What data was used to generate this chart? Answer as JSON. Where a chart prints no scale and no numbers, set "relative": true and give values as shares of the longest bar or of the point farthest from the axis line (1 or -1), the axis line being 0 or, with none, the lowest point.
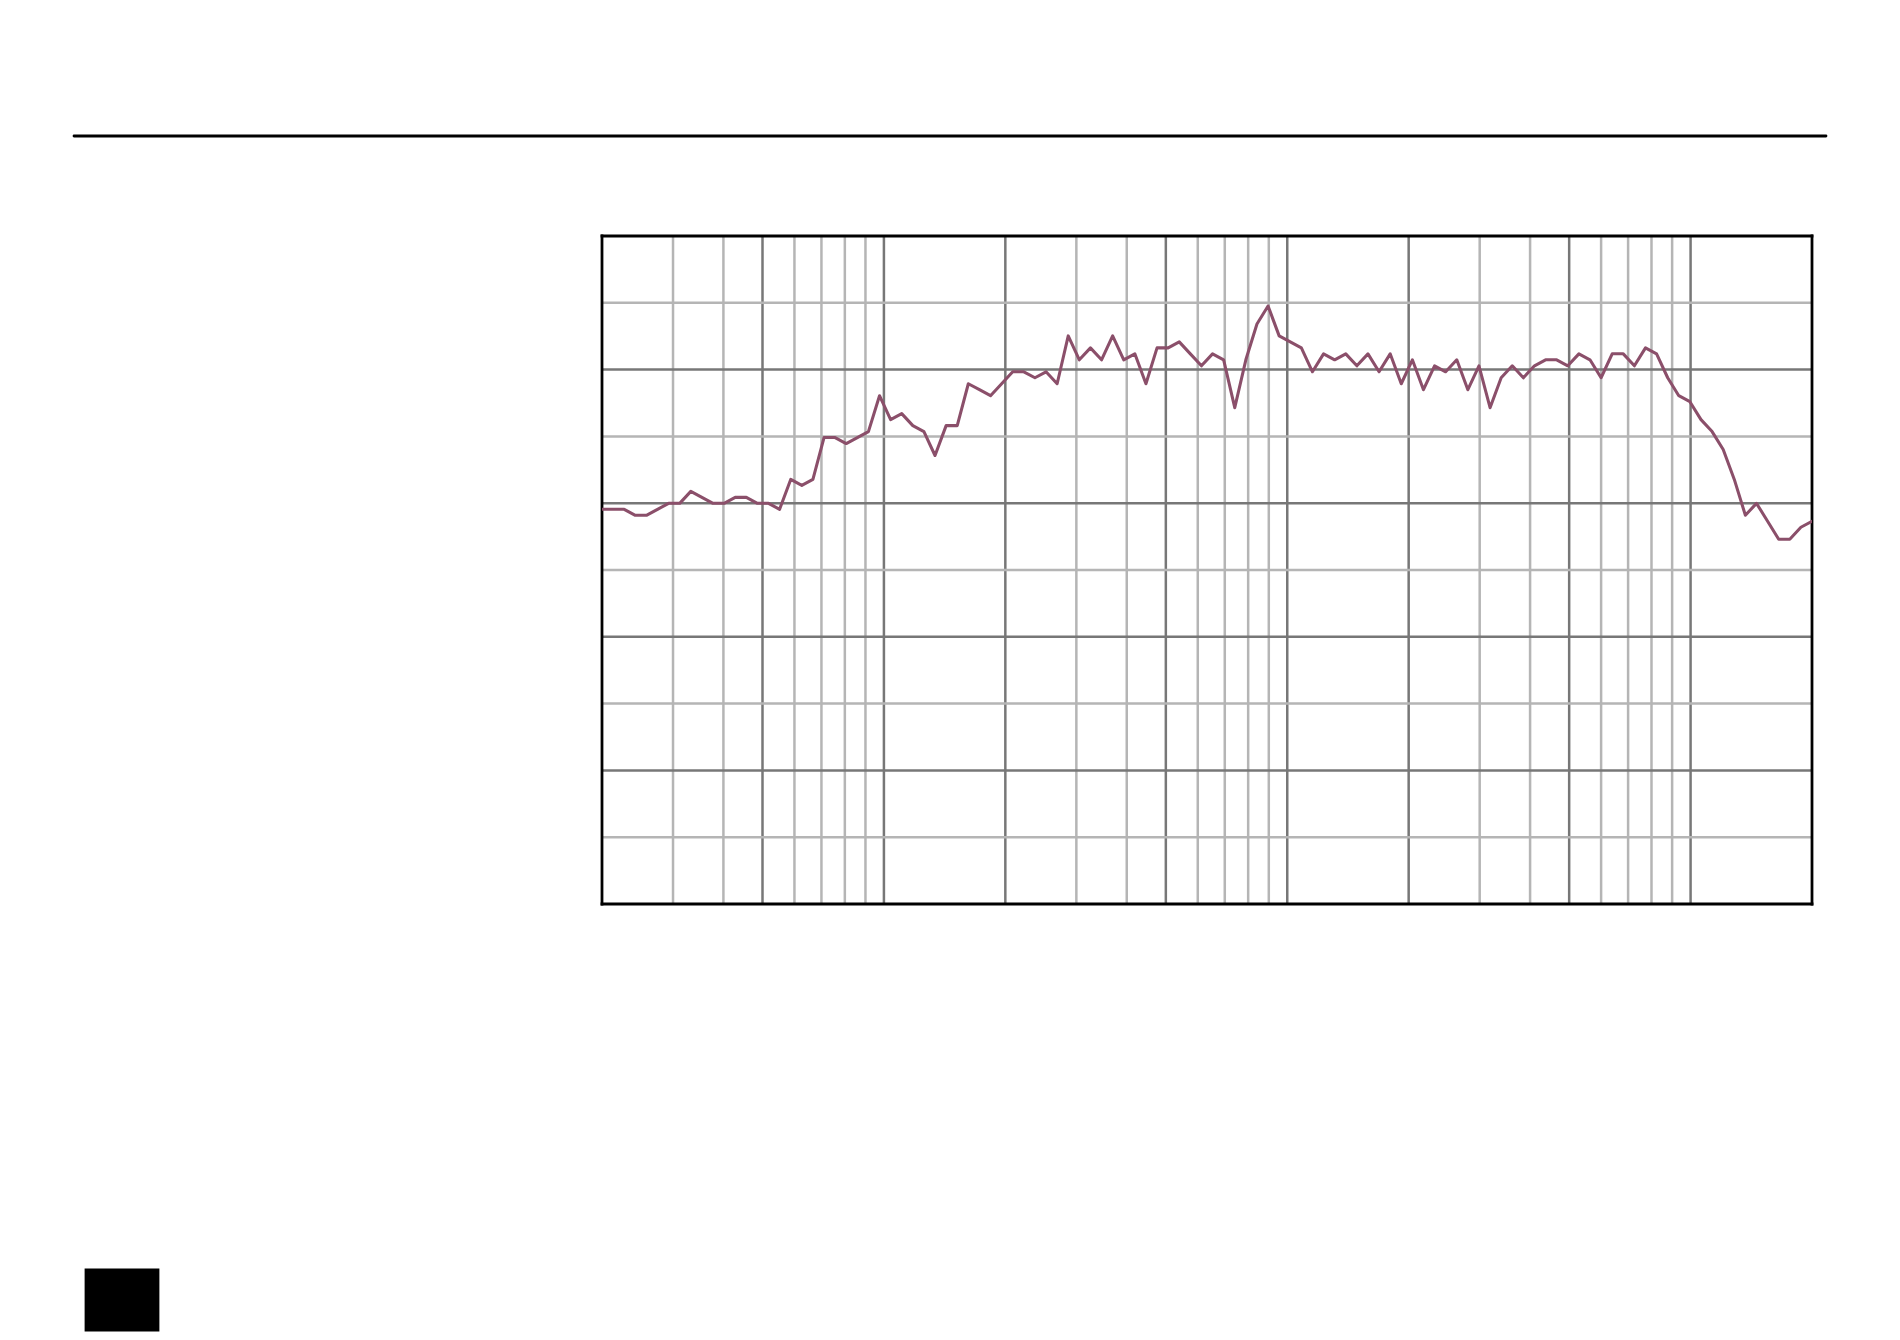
{
  "chart_data": {
    "type": "line",
    "relative": true,
    "grid": true,
    "color": "#8b4f6a",
    "categories": [
      null,
      null,
      null,
      null,
      null,
      null,
      null,
      null,
      null,
      null,
      null,
      null,
      null,
      null,
      null,
      null,
      null,
      null,
      null,
      null,
      null,
      null,
      null,
      null,
      null,
      null,
      null,
      null,
      null,
      null,
      null,
      null,
      null,
      null,
      null,
      null,
      null,
      null,
      null,
      null,
      null,
      null,
      null,
      null,
      null,
      null,
      null,
      null,
      null,
      null,
      null,
      null,
      null,
      null,
      null,
      null,
      null,
      null,
      null,
      null,
      null,
      null,
      null,
      null,
      null,
      null,
      null,
      null,
      null,
      null,
      null,
      null,
      null,
      null,
      null,
      null,
      null,
      null,
      null,
      null,
      null,
      null,
      null,
      null,
      null,
      null,
      null,
      null,
      null,
      null,
      null,
      null,
      null,
      null,
      null,
      null,
      null,
      null,
      null,
      null,
      null,
      null,
      null,
      null,
      null,
      null,
      null,
      null,
      null,
      null
    ],
    "values": [
      0.66,
      0.66,
      0.66,
      0.65,
      0.65,
      0.66,
      0.67,
      0.67,
      0.69,
      0.68,
      0.67,
      0.67,
      0.68,
      0.68,
      0.67,
      0.67,
      0.66,
      0.71,
      0.7,
      0.71,
      0.78,
      0.78,
      0.77,
      0.78,
      0.79,
      0.85,
      0.81,
      0.82,
      0.8,
      0.79,
      0.75,
      0.8,
      0.8,
      0.87,
      0.86,
      0.85,
      0.87,
      0.89,
      0.89,
      0.88,
      0.89,
      0.87,
      0.95,
      0.91,
      0.93,
      0.91,
      0.95,
      0.91,
      0.92,
      0.87,
      0.93,
      0.93,
      0.94,
      0.92,
      0.9,
      0.92,
      0.91,
      0.83,
      0.91,
      0.97,
      1.0,
      0.95,
      0.94,
      0.93,
      0.89,
      0.92,
      0.91,
      0.92,
      0.9,
      0.92,
      0.89,
      0.92,
      0.87,
      0.91,
      0.86,
      0.9,
      0.89,
      0.91,
      0.86,
      0.9,
      0.83,
      0.88,
      0.9,
      0.88,
      0.9,
      0.91,
      0.91,
      0.9,
      0.92,
      0.91,
      0.88,
      0.92,
      0.92,
      0.9,
      0.93,
      0.92,
      0.88,
      0.85,
      0.84,
      0.81,
      0.79,
      0.76,
      0.71,
      0.65,
      0.67,
      0.64,
      0.61,
      0.61,
      0.63,
      0.64
    ]
  }
}
